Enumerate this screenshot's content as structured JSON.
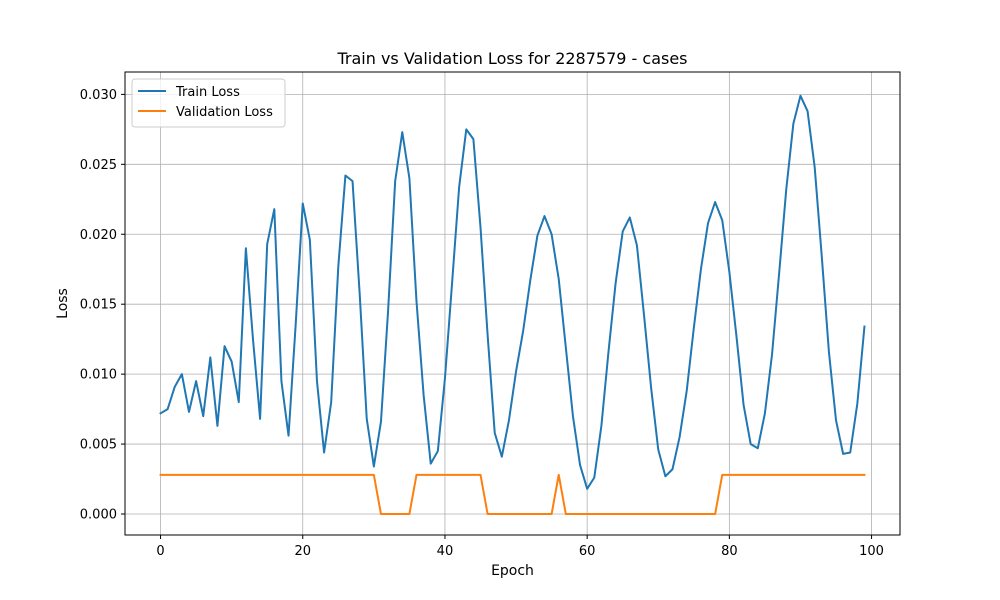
{
  "chart_data": {
    "type": "line",
    "title": "Train vs Validation Loss for 2287579 - cases",
    "xlabel": "Epoch",
    "ylabel": "Loss",
    "xlim": [
      -5,
      104
    ],
    "ylim": [
      -0.0015,
      0.0316
    ],
    "xticks": [
      0,
      20,
      40,
      60,
      80,
      100
    ],
    "yticks": [
      0.0,
      0.005,
      0.01,
      0.015,
      0.02,
      0.025,
      0.03
    ],
    "xtick_labels": [
      "0",
      "20",
      "40",
      "60",
      "80",
      "100"
    ],
    "ytick_labels": [
      "0.000",
      "0.005",
      "0.010",
      "0.015",
      "0.020",
      "0.025",
      "0.030"
    ],
    "grid": true,
    "legend_position": "top-left",
    "series": [
      {
        "name": "Train Loss",
        "color": "#1f77b4",
        "x": [
          0,
          1,
          2,
          3,
          4,
          5,
          6,
          7,
          8,
          9,
          10,
          11,
          12,
          13,
          14,
          15,
          16,
          17,
          18,
          19,
          20,
          21,
          22,
          23,
          24,
          25,
          26,
          27,
          28,
          29,
          30,
          31,
          32,
          33,
          34,
          35,
          36,
          37,
          38,
          39,
          40,
          41,
          42,
          43,
          44,
          45,
          46,
          47,
          48,
          49,
          50,
          51,
          52,
          53,
          54,
          55,
          56,
          57,
          58,
          59,
          60,
          61,
          62,
          63,
          64,
          65,
          66,
          67,
          68,
          69,
          70,
          71,
          72,
          73,
          74,
          75,
          76,
          77,
          78,
          79,
          80,
          81,
          82,
          83,
          84,
          85,
          86,
          87,
          88,
          89,
          90,
          91,
          92,
          93,
          94,
          95,
          96,
          97,
          98,
          99
        ],
        "values": [
          0.0072,
          0.0075,
          0.0091,
          0.01,
          0.0073,
          0.0095,
          0.007,
          0.0112,
          0.0063,
          0.012,
          0.0109,
          0.008,
          0.019,
          0.0125,
          0.0068,
          0.0193,
          0.0218,
          0.0095,
          0.0056,
          0.0135,
          0.0222,
          0.0196,
          0.0095,
          0.0044,
          0.008,
          0.0177,
          0.0242,
          0.0238,
          0.0158,
          0.0068,
          0.0034,
          0.0066,
          0.0145,
          0.0238,
          0.0273,
          0.024,
          0.0152,
          0.0085,
          0.0036,
          0.0045,
          0.0097,
          0.0165,
          0.0234,
          0.0275,
          0.0268,
          0.0205,
          0.0128,
          0.0058,
          0.0041,
          0.0067,
          0.0102,
          0.0131,
          0.0167,
          0.0199,
          0.0213,
          0.02,
          0.0168,
          0.0119,
          0.007,
          0.0035,
          0.0018,
          0.0026,
          0.0063,
          0.0116,
          0.0165,
          0.0202,
          0.0212,
          0.0192,
          0.0142,
          0.009,
          0.0046,
          0.0027,
          0.0032,
          0.0055,
          0.0088,
          0.0133,
          0.0175,
          0.0208,
          0.0223,
          0.021,
          0.0173,
          0.0127,
          0.0078,
          0.005,
          0.0047,
          0.0072,
          0.0114,
          0.0172,
          0.0232,
          0.0279,
          0.0299,
          0.0288,
          0.0248,
          0.0184,
          0.0116,
          0.0067,
          0.0043,
          0.0044,
          0.0079,
          0.0134
        ]
      },
      {
        "name": "Validation Loss",
        "color": "#ff7f0e",
        "x": [
          0,
          1,
          2,
          3,
          4,
          5,
          6,
          7,
          8,
          9,
          10,
          11,
          12,
          13,
          14,
          15,
          16,
          17,
          18,
          19,
          20,
          21,
          22,
          23,
          24,
          25,
          26,
          27,
          28,
          29,
          30,
          31,
          32,
          33,
          34,
          35,
          36,
          37,
          38,
          39,
          40,
          41,
          42,
          43,
          44,
          45,
          46,
          47,
          48,
          49,
          50,
          51,
          52,
          53,
          54,
          55,
          56,
          57,
          58,
          59,
          60,
          61,
          62,
          63,
          64,
          65,
          66,
          67,
          68,
          69,
          70,
          71,
          72,
          73,
          74,
          75,
          76,
          77,
          78,
          79,
          80,
          81,
          82,
          83,
          84,
          85,
          86,
          87,
          88,
          89,
          90,
          91,
          92,
          93,
          94,
          95,
          96,
          97,
          98,
          99
        ],
        "values": [
          0.0028,
          0.0028,
          0.0028,
          0.0028,
          0.0028,
          0.0028,
          0.0028,
          0.0028,
          0.0028,
          0.0028,
          0.0028,
          0.0028,
          0.0028,
          0.0028,
          0.0028,
          0.0028,
          0.0028,
          0.0028,
          0.0028,
          0.0028,
          0.0028,
          0.0028,
          0.0028,
          0.0028,
          0.0028,
          0.0028,
          0.0028,
          0.0028,
          0.0028,
          0.0028,
          0.0028,
          0.0,
          0.0,
          0.0,
          0.0,
          0.0,
          0.0028,
          0.0028,
          0.0028,
          0.0028,
          0.0028,
          0.0028,
          0.0028,
          0.0028,
          0.0028,
          0.0028,
          0.0,
          0.0,
          0.0,
          0.0,
          0.0,
          0.0,
          0.0,
          0.0,
          0.0,
          0.0,
          0.0028,
          0.0,
          0.0,
          0.0,
          0.0,
          0.0,
          0.0,
          0.0,
          0.0,
          0.0,
          0.0,
          0.0,
          0.0,
          0.0,
          0.0,
          0.0,
          0.0,
          0.0,
          0.0,
          0.0,
          0.0,
          0.0,
          0.0,
          0.0028,
          0.0028,
          0.0028,
          0.0028,
          0.0028,
          0.0028,
          0.0028,
          0.0028,
          0.0028,
          0.0028,
          0.0028,
          0.0028,
          0.0028,
          0.0028,
          0.0028,
          0.0028,
          0.0028,
          0.0028,
          0.0028,
          0.0028,
          0.0028
        ]
      }
    ]
  }
}
